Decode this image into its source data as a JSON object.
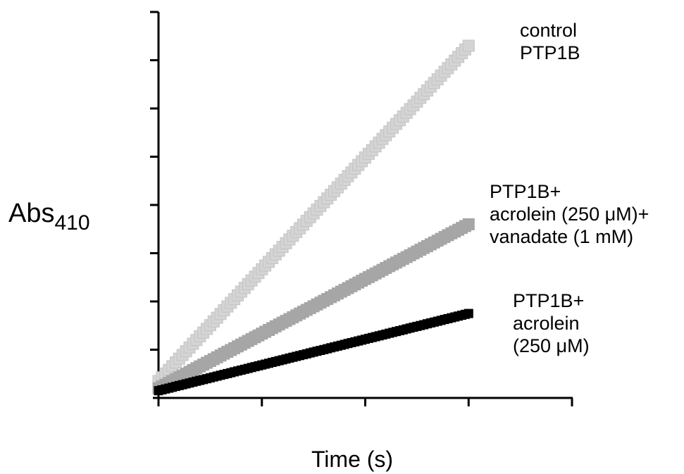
{
  "chart_data": {
    "type": "line",
    "title": "",
    "xlabel": "Time (s)",
    "ylabel": {
      "main": "Abs",
      "subscript": "410"
    },
    "x_ticks": 4,
    "y_ticks": 8,
    "xlim": [
      0,
      4
    ],
    "ylim": [
      0,
      8
    ],
    "grid": false,
    "series": [
      {
        "name_lines": [
          "control",
          "PTP1B"
        ],
        "color": "#d4d4d4",
        "x": [
          0,
          3
        ],
        "y": [
          0.35,
          7.3
        ]
      },
      {
        "name_lines": [
          "PTP1B+",
          "acrolein (250 μM)+",
          "vanadate (1 mM)"
        ],
        "color": "#a6a6a6",
        "x": [
          0,
          3
        ],
        "y": [
          0.2,
          3.6
        ]
      },
      {
        "name_lines": [
          "PTP1B+",
          "acrolein",
          "(250 μM)"
        ],
        "color": "#000000",
        "x": [
          0,
          3
        ],
        "y": [
          0.15,
          1.75
        ]
      }
    ]
  }
}
